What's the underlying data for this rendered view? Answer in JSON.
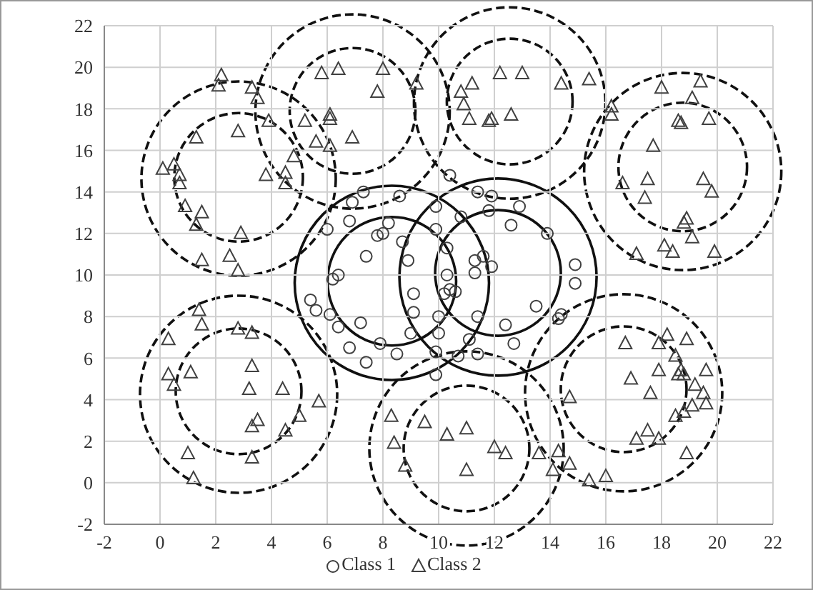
{
  "chart_data": {
    "type": "scatter",
    "xlim": [
      -2,
      22
    ],
    "ylim": [
      -2,
      22
    ],
    "xticks": [
      -2,
      0,
      2,
      4,
      6,
      8,
      10,
      12,
      14,
      16,
      18,
      20,
      22
    ],
    "yticks": [
      -2,
      0,
      2,
      4,
      6,
      8,
      10,
      12,
      14,
      16,
      18,
      20,
      22
    ],
    "grid": true,
    "legend": "bottom",
    "series": [
      {
        "name": "Class 1",
        "color": "#404040",
        "marker": "circle",
        "x": [
          10.4,
          7.3,
          6.9,
          11.4,
          11.9,
          8.6,
          6.0,
          6.8,
          8.2,
          8.0,
          7.8,
          9.9,
          10.8,
          11.8,
          12.6,
          12.9,
          13.9,
          8.7,
          9.9,
          7.4,
          8.9,
          10.3,
          11.3,
          11.6,
          11.9,
          11.3,
          14.9,
          14.9,
          6.2,
          6.4,
          10.3,
          10.2,
          10.4,
          10.6,
          9.1,
          5.4,
          5.6,
          6.1,
          6.4,
          7.2,
          9.1,
          10.0,
          11.4,
          13.5,
          14.4,
          14.3,
          12.4,
          9.0,
          10.0,
          7.9,
          11.1,
          12.7,
          6.8,
          8.5,
          9.9,
          10.7,
          11.4,
          7.4,
          9.9
        ],
        "values": [
          14.8,
          14.0,
          13.5,
          14.0,
          13.8,
          13.8,
          12.2,
          12.6,
          12.5,
          12.0,
          11.9,
          13.3,
          12.8,
          13.1,
          12.4,
          13.3,
          12.0,
          11.6,
          12.2,
          10.9,
          10.7,
          11.3,
          10.7,
          10.9,
          10.4,
          10.1,
          10.5,
          9.6,
          9.8,
          10.0,
          10.0,
          9.1,
          9.3,
          9.2,
          9.1,
          8.8,
          8.3,
          8.1,
          7.5,
          7.7,
          8.2,
          8.0,
          8.0,
          8.5,
          8.1,
          7.9,
          7.6,
          7.2,
          7.2,
          6.7,
          6.9,
          6.7,
          6.5,
          6.2,
          6.3,
          6.1,
          6.2,
          5.8,
          5.2
        ]
      },
      {
        "name": "Class 2",
        "color": "#404040",
        "marker": "triangle",
        "x": [
          2.2,
          2.1,
          5.8,
          6.4,
          8.0,
          9.2,
          7.8,
          3.3,
          3.5,
          3.9,
          5.2,
          6.1,
          6.1,
          5.6,
          6.1,
          6.9,
          2.8,
          1.3,
          0.1,
          0.5,
          0.7,
          0.7,
          4.8,
          3.8,
          4.5,
          4.5,
          0.9,
          1.5,
          1.3,
          2.9,
          2.5,
          1.5,
          2.8,
          12.2,
          13.0,
          11.2,
          10.8,
          10.9,
          11.1,
          11.8,
          11.9,
          12.6,
          14.4,
          15.4,
          16.2,
          16.2,
          18.0,
          19.4,
          19.1,
          18.6,
          18.7,
          19.7,
          17.7,
          16.6,
          17.5,
          17.4,
          19.5,
          19.8,
          18.9,
          18.8,
          19.1,
          18.1,
          18.4,
          19.9,
          17.1,
          1.4,
          1.5,
          2.8,
          3.3,
          0.3,
          0.3,
          0.5,
          1.1,
          3.3,
          3.2,
          4.4,
          5.7,
          5.0,
          3.5,
          3.3,
          4.5,
          3.3,
          1.0,
          1.2,
          8.3,
          8.4,
          8.8,
          9.5,
          10.3,
          11.0,
          11.0,
          12.0,
          12.4,
          13.6,
          14.3,
          14.7,
          14.1,
          15.4,
          16.0,
          14.7,
          16.7,
          16.9,
          17.9,
          18.2,
          18.9,
          18.5,
          18.7,
          18.6,
          18.8,
          17.9,
          17.6,
          19.6,
          19.2,
          19.5,
          19.6,
          19.1,
          18.8,
          18.5,
          17.5,
          17.1,
          17.9,
          18.9
        ],
        "values": [
          19.6,
          19.1,
          19.7,
          19.9,
          19.9,
          19.2,
          18.8,
          19.0,
          18.5,
          17.4,
          17.4,
          17.7,
          17.5,
          16.4,
          16.2,
          16.6,
          16.9,
          16.6,
          15.1,
          15.3,
          14.8,
          14.4,
          15.7,
          14.8,
          14.9,
          14.4,
          13.3,
          13.0,
          12.4,
          12.0,
          10.9,
          10.7,
          10.2,
          19.7,
          19.7,
          19.2,
          18.8,
          18.2,
          17.5,
          17.4,
          17.5,
          17.7,
          19.2,
          19.4,
          18.1,
          17.7,
          19.0,
          19.3,
          18.5,
          17.4,
          17.3,
          17.5,
          16.2,
          14.4,
          14.6,
          13.7,
          14.6,
          14.0,
          12.7,
          12.5,
          11.8,
          11.4,
          11.1,
          11.1,
          11.0,
          8.3,
          7.6,
          7.4,
          7.2,
          6.9,
          5.2,
          4.7,
          5.3,
          5.6,
          4.5,
          4.5,
          3.9,
          3.2,
          3.0,
          2.7,
          2.5,
          1.2,
          1.4,
          0.2,
          3.2,
          1.9,
          0.8,
          2.9,
          2.3,
          2.6,
          0.6,
          1.7,
          1.4,
          1.4,
          1.5,
          0.9,
          0.6,
          0.1,
          0.3,
          4.1,
          6.7,
          5.0,
          6.7,
          7.1,
          6.9,
          6.1,
          5.4,
          5.2,
          5.2,
          5.4,
          4.3,
          5.4,
          4.7,
          4.3,
          3.8,
          3.7,
          3.4,
          3.2,
          2.5,
          2.1,
          2.1,
          1.4
        ]
      }
    ]
  }
}
